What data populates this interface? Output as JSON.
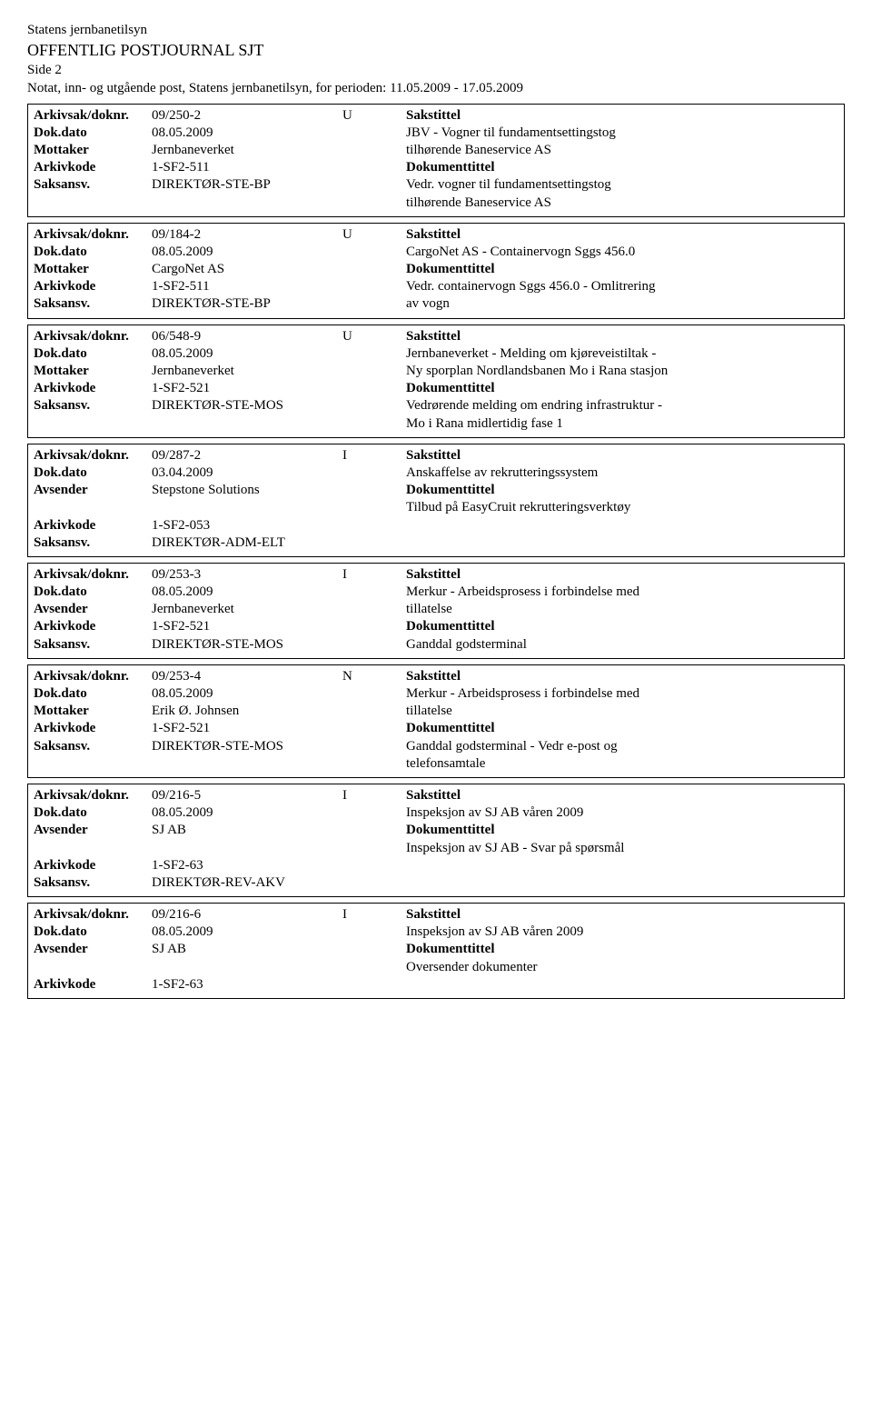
{
  "header": {
    "org": "Statens jernbanetilsyn",
    "title": "OFFENTLIG POSTJOURNAL SJT",
    "page": "Side 2",
    "period": "Notat, inn- og utgående post, Statens jernbanetilsyn, for perioden: 11.05.2009 - 17.05.2009"
  },
  "labels": {
    "arkivsak": "Arkivsak/doknr.",
    "dokdato": "Dok.dato",
    "mottaker": "Mottaker",
    "avsender": "Avsender",
    "arkivkode": "Arkivkode",
    "saksansv": "Saksansv.",
    "sakstittel": "Sakstittel",
    "dokumenttittel": "Dokumenttittel"
  },
  "records": [
    {
      "doknr": "09/250-2",
      "type": "U",
      "dato": "08.05.2009",
      "partyLabel": "Mottaker",
      "party": "Jernbaneverket",
      "arkivkode": "1-SF2-511",
      "saksansv": "DIREKTØR-STE-BP",
      "sakstittel": "JBV - Vogner til fundamentsettingstog tilhørende Baneservice AS",
      "doktittel": "Vedr. vogner til fundamentsettingstog tilhørende Baneservice AS"
    },
    {
      "doknr": "09/184-2",
      "type": "U",
      "dato": "08.05.2009",
      "partyLabel": "Mottaker",
      "party": "CargoNet AS",
      "arkivkode": "1-SF2-511",
      "saksansv": "DIREKTØR-STE-BP",
      "sakstittel": "CargoNet AS - Containervogn Sggs 456.0",
      "doktittel": "Vedr. containervogn Sggs 456.0 - Omlitrering av vogn"
    },
    {
      "doknr": "06/548-9",
      "type": "U",
      "dato": "08.05.2009",
      "partyLabel": "Mottaker",
      "party": "Jernbaneverket",
      "arkivkode": "1-SF2-521",
      "saksansv": "DIREKTØR-STE-MOS",
      "sakstittel": "Jernbaneverket - Melding om kjøreveistiltak - Ny sporplan Nordlandsbanen Mo i Rana stasjon",
      "doktittel": "Vedrørende melding om endring infrastruktur - Mo i Rana midlertidig fase 1"
    },
    {
      "doknr": "09/287-2",
      "type": "I",
      "dato": "03.04.2009",
      "partyLabel": "Avsender",
      "party": "Stepstone Solutions",
      "arkivkode": "1-SF2-053",
      "saksansv": "DIREKTØR-ADM-ELT",
      "sakstittel": "Anskaffelse av rekrutteringssystem",
      "doktittel": "Tilbud på EasyCruit rekrutteringsverktøy",
      "gapAfterParty": true
    },
    {
      "doknr": "09/253-3",
      "type": "I",
      "dato": "08.05.2009",
      "partyLabel": "Avsender",
      "party": "Jernbaneverket",
      "arkivkode": "1-SF2-521",
      "saksansv": "DIREKTØR-STE-MOS",
      "sakstittel": "Merkur - Arbeidsprosess i forbindelse med tillatelse",
      "doktittel": "Ganddal godsterminal",
      "trailingBlank": true
    },
    {
      "doknr": "09/253-4",
      "type": "N",
      "dato": "08.05.2009",
      "partyLabel": "Mottaker",
      "party": "Erik Ø. Johnsen",
      "arkivkode": "1-SF2-521",
      "saksansv": "DIREKTØR-STE-MOS",
      "sakstittel": "Merkur - Arbeidsprosess i forbindelse med tillatelse",
      "doktittel": "Ganddal godsterminal - Vedr e-post og telefonsamtale"
    },
    {
      "doknr": "09/216-5",
      "type": "I",
      "dato": "08.05.2009",
      "partyLabel": "Avsender",
      "party": "SJ AB",
      "arkivkode": "1-SF2-63",
      "saksansv": "DIREKTØR-REV-AKV",
      "sakstittel": "Inspeksjon av SJ AB våren 2009",
      "doktittel": "Inspeksjon av SJ AB - Svar på spørsmål",
      "gapAfterParty": true
    },
    {
      "doknr": "09/216-6",
      "type": "I",
      "dato": "08.05.2009",
      "partyLabel": "Avsender",
      "party": "SJ AB",
      "arkivkode": "1-SF2-63",
      "sakstittel": "Inspeksjon av SJ AB våren 2009",
      "doktittel": "Oversender dokumenter",
      "gapAfterParty": true,
      "noSaksansv": true
    }
  ]
}
